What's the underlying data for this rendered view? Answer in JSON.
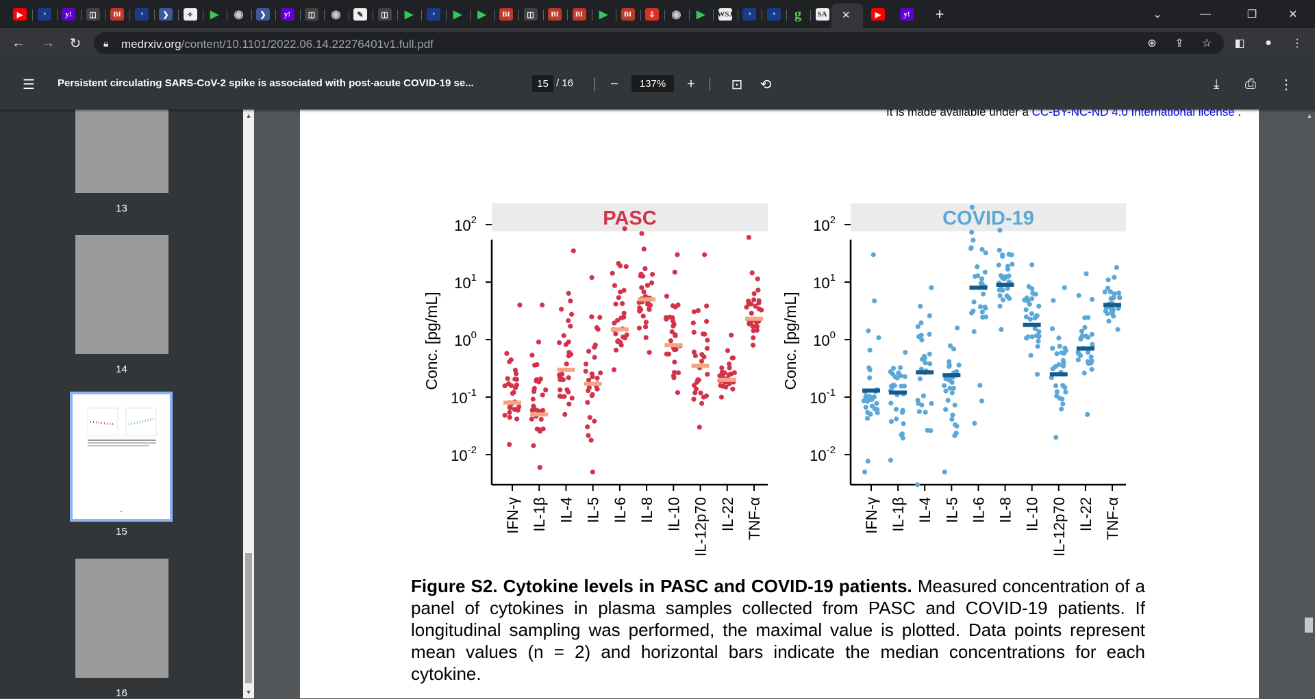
{
  "browser": {
    "tab_icons": [
      "youtube-icon",
      "bookmark-icon",
      "yahoo-icon",
      "news-icon",
      "bi-icon",
      "bookmark-icon",
      "nav-icon",
      "puzzle-icon",
      "play-icon",
      "globe-icon",
      "nav-icon",
      "yahoo-icon",
      "news-icon",
      "globe-icon",
      "reader-icon",
      "news-icon",
      "play-icon",
      "bookmark-icon",
      "play-icon",
      "play-icon",
      "bi-icon",
      "news-icon",
      "bi-icon",
      "bi-icon",
      "play-icon",
      "bi-icon",
      "download-icon",
      "globe-icon",
      "play-icon",
      "wsj-icon",
      "bookmark-icon",
      "bookmark-icon",
      "g-icon",
      "sa-icon"
    ],
    "bi_label": "BI",
    "yahoo_label": "y!",
    "g_label": "g",
    "sa_label": "SA",
    "wsj_label": "WSJ",
    "active_tab_close": "✕",
    "new_tab": "+",
    "url_host": "medrxiv.org",
    "url_path": "/content/10.1101/2022.06.14.22276401v1.full.pdf"
  },
  "pdf_toolbar": {
    "title": "Persistent circulating SARS-CoV-2 spike is associated with post-acute COVID-19 se...",
    "page_current": "15",
    "page_total": "/ 16",
    "zoom": "137%"
  },
  "sidebar": {
    "thumbnails": [
      {
        "label": "13"
      },
      {
        "label": "14"
      },
      {
        "label": "15"
      },
      {
        "label": "16"
      }
    ]
  },
  "page": {
    "license_prefix": "It is made available under a ",
    "license_link": "CC-BY-NC-ND 4.0 International license",
    "license_suffix": " .",
    "caption_bold": "Figure S2. Cytokine levels in PASC and COVID-19 patients.",
    "caption_text": " Measured concentration of a panel of cytokines in plasma samples collected from PASC and COVID-19 patients. If longitudinal sampling was performed, the maximal value is plotted. Data points represent mean values (n = 2) and horizontal bars indicate the median concentrations for each cytokine."
  },
  "colors": {
    "pasc_point": "#d2334a",
    "pasc_median": "#f4a582",
    "covid_point": "#5ba8d8",
    "covid_median": "#155a8a",
    "pasc_title": "#d2334a",
    "covid_title": "#5ba8d8"
  },
  "chart_data": [
    {
      "type": "scatter",
      "title": "PASC",
      "ylabel": "Conc. [pg/mL]",
      "yscale": "log",
      "ylim": [
        0.003,
        300
      ],
      "yticks": [
        "10^2",
        "10^1",
        "10^0",
        "10^-1",
        "10^-2"
      ],
      "categories": [
        "IFN-γ",
        "IL-1β",
        "IL-4",
        "IL-5",
        "IL-6",
        "IL-8",
        "IL-10",
        "IL-12p70",
        "IL-22",
        "TNF-α"
      ],
      "medians": [
        0.08,
        0.05,
        0.3,
        0.17,
        1.5,
        5,
        0.8,
        0.35,
        0.2,
        2.3
      ],
      "ranges": [
        [
          0.015,
          4
        ],
        [
          0.006,
          4
        ],
        [
          0.05,
          35
        ],
        [
          0.005,
          12
        ],
        [
          0.3,
          85
        ],
        [
          0.6,
          70
        ],
        [
          0.12,
          30
        ],
        [
          0.03,
          30
        ],
        [
          0.1,
          1.2
        ],
        [
          0.8,
          60
        ]
      ]
    },
    {
      "type": "scatter",
      "title": "COVID-19",
      "ylabel": "Conc. [pg/mL]",
      "yscale": "log",
      "ylim": [
        0.003,
        300
      ],
      "yticks": [
        "10^2",
        "10^1",
        "10^0",
        "10^-1",
        "10^-2"
      ],
      "categories": [
        "IFN-γ",
        "IL-1β",
        "IL-4",
        "IL-5",
        "IL-6",
        "IL-8",
        "IL-10",
        "IL-12p70",
        "IL-22",
        "TNF-α"
      ],
      "medians": [
        0.13,
        0.12,
        0.27,
        0.24,
        8,
        9,
        1.8,
        0.25,
        0.7,
        4
      ],
      "ranges": [
        [
          0.005,
          30
        ],
        [
          0.008,
          0.6
        ],
        [
          0.003,
          8
        ],
        [
          0.005,
          1.6
        ],
        [
          0.035,
          200
        ],
        [
          1.5,
          80
        ],
        [
          0.25,
          20
        ],
        [
          0.02,
          8
        ],
        [
          0.05,
          14
        ],
        [
          1.5,
          18
        ]
      ]
    }
  ]
}
